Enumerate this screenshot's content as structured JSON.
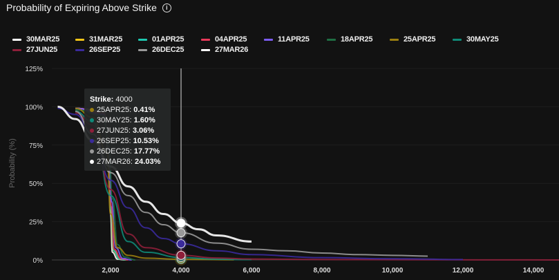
{
  "title": "Probability of Expiring Above Strike",
  "info_icon": "info-icon",
  "chart_data": {
    "type": "line",
    "title": "Probability of Expiring Above Strike",
    "xlabel": "",
    "ylabel": "Probability (%)",
    "xlim": [
      333,
      14725
    ],
    "ylim": [
      0,
      125
    ],
    "xticks": [
      2000,
      4000,
      6000,
      8000,
      10000,
      12000,
      14000
    ],
    "xtick_labels": [
      "2,000",
      "4,000",
      "6,000",
      "8,000",
      "10,000",
      "12,000",
      "14,000"
    ],
    "yticks": [
      0,
      25,
      50,
      75,
      100,
      125
    ],
    "ytick_labels": [
      "0%",
      "25%",
      "50%",
      "75%",
      "100%",
      "125%"
    ],
    "grid": true,
    "legend_position": "top",
    "series": [
      {
        "name": "30MAR25",
        "color": "#ffffff",
        "points": [
          [
            1000,
            99
          ],
          [
            1800,
            97
          ],
          [
            1950,
            70
          ],
          [
            2000,
            30
          ],
          [
            2050,
            5
          ],
          [
            2200,
            0.5
          ],
          [
            2400,
            0
          ]
        ]
      },
      {
        "name": "31MAR25",
        "color": "#f5c518",
        "points": [
          [
            1000,
            99
          ],
          [
            1800,
            96
          ],
          [
            1950,
            72
          ],
          [
            2000,
            35
          ],
          [
            2080,
            6
          ],
          [
            2250,
            0.6
          ],
          [
            2450,
            0
          ]
        ]
      },
      {
        "name": "01APR25",
        "color": "#1ec8b0",
        "points": [
          [
            1000,
            99
          ],
          [
            1800,
            96
          ],
          [
            1950,
            72
          ],
          [
            2010,
            33
          ],
          [
            2090,
            6
          ],
          [
            2250,
            0.6
          ],
          [
            2450,
            0
          ]
        ]
      },
      {
        "name": "04APR25",
        "color": "#e8395a",
        "points": [
          [
            1000,
            99
          ],
          [
            1800,
            96
          ],
          [
            1950,
            73
          ],
          [
            2020,
            35
          ],
          [
            2100,
            7
          ],
          [
            2300,
            0.8
          ],
          [
            2500,
            0
          ]
        ]
      },
      {
        "name": "11APR25",
        "color": "#7b5cf0",
        "points": [
          [
            1000,
            99
          ],
          [
            1800,
            95
          ],
          [
            1950,
            74
          ],
          [
            2030,
            38
          ],
          [
            2150,
            8
          ],
          [
            2350,
            1
          ],
          [
            2600,
            0
          ]
        ]
      },
      {
        "name": "18APR25",
        "color": "#1f6e43",
        "points": [
          [
            1000,
            98
          ],
          [
            1800,
            94
          ],
          [
            1950,
            74
          ],
          [
            2050,
            40
          ],
          [
            2200,
            10
          ],
          [
            2400,
            2
          ],
          [
            2700,
            0
          ]
        ]
      },
      {
        "name": "25APR25",
        "color": "#9a7e10",
        "points": [
          [
            1000,
            99
          ],
          [
            1500,
            93
          ],
          [
            1900,
            70
          ],
          [
            2000,
            30
          ],
          [
            2200,
            8
          ],
          [
            2500,
            3
          ],
          [
            3000,
            1.2
          ],
          [
            4000,
            0.41
          ],
          [
            5500,
            0.1
          ]
        ]
      },
      {
        "name": "30MAY25",
        "color": "#0f8a78",
        "points": [
          [
            1000,
            97
          ],
          [
            1500,
            90
          ],
          [
            2000,
            42
          ],
          [
            2500,
            12
          ],
          [
            3000,
            5
          ],
          [
            4000,
            1.6
          ],
          [
            5000,
            0.5
          ],
          [
            6000,
            0.2
          ]
        ]
      },
      {
        "name": "27JUN25",
        "color": "#8e1f3a",
        "points": [
          [
            1000,
            96
          ],
          [
            1500,
            88
          ],
          [
            2000,
            46
          ],
          [
            2500,
            17
          ],
          [
            3000,
            8
          ],
          [
            4000,
            3.06
          ],
          [
            5000,
            1.3
          ],
          [
            6000,
            0.6
          ],
          [
            8000,
            0.3
          ],
          [
            10000,
            0.15
          ],
          [
            15000,
            0
          ]
        ]
      },
      {
        "name": "26SEP25",
        "color": "#3a2a9c",
        "points": [
          [
            500,
            99
          ],
          [
            1000,
            95
          ],
          [
            1500,
            82
          ],
          [
            2000,
            52
          ],
          [
            2500,
            34
          ],
          [
            3000,
            21
          ],
          [
            3500,
            14
          ],
          [
            4000,
            10.53
          ],
          [
            5000,
            6
          ],
          [
            6000,
            3.5
          ],
          [
            8000,
            1.5
          ],
          [
            10000,
            0.8
          ],
          [
            12000,
            0.3
          ]
        ]
      },
      {
        "name": "26DEC25",
        "color": "#9a9a9a",
        "points": [
          [
            1000,
            97
          ],
          [
            1500,
            82
          ],
          [
            2000,
            57
          ],
          [
            2500,
            42
          ],
          [
            3000,
            31
          ],
          [
            3500,
            23
          ],
          [
            4000,
            17.77
          ],
          [
            5000,
            11
          ],
          [
            6000,
            7
          ],
          [
            7000,
            6
          ],
          [
            8000,
            4.5
          ],
          [
            9000,
            3.5
          ],
          [
            10000,
            3
          ],
          [
            11000,
            2.5
          ]
        ]
      },
      {
        "name": "27MAR26",
        "color": "#ffffff",
        "points": [
          [
            500,
            100
          ],
          [
            1000,
            92
          ],
          [
            1500,
            78
          ],
          [
            2000,
            61
          ],
          [
            2500,
            48
          ],
          [
            3000,
            38
          ],
          [
            3500,
            30
          ],
          [
            4000,
            24.03
          ],
          [
            4500,
            20
          ],
          [
            5000,
            16
          ],
          [
            6000,
            12
          ]
        ]
      }
    ],
    "crosshair": {
      "x": 4000
    },
    "tooltip": {
      "strike_label": "Strike:",
      "strike_value": "4000",
      "rows": [
        {
          "name": "25APR25",
          "value": "0.41%",
          "color": "#9a7e10"
        },
        {
          "name": "30MAY25",
          "value": "1.60%",
          "color": "#0f8a78"
        },
        {
          "name": "27JUN25",
          "value": "3.06%",
          "color": "#8e1f3a"
        },
        {
          "name": "26SEP25",
          "value": "10.53%",
          "color": "#3a2a9c"
        },
        {
          "name": "26DEC25",
          "value": "17.77%",
          "color": "#9a9a9a"
        },
        {
          "name": "27MAR26",
          "value": "24.03%",
          "color": "#ffffff"
        }
      ]
    }
  }
}
